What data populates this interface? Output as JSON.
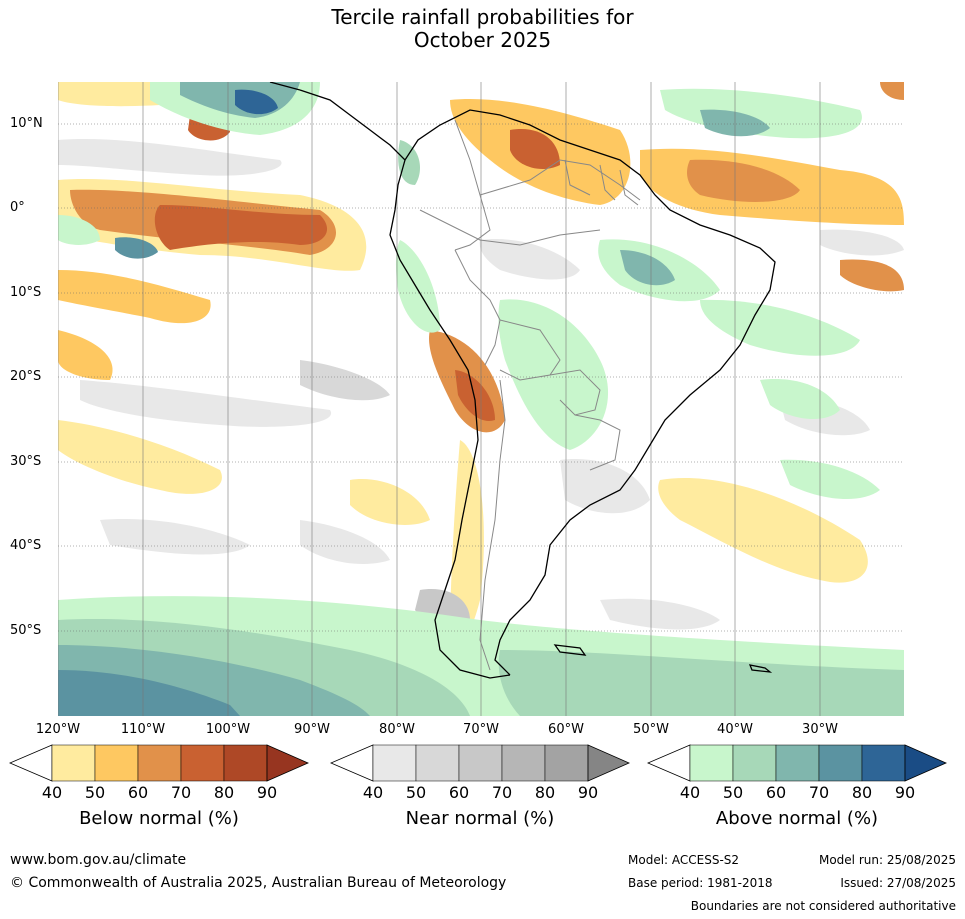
{
  "title_line1": "Tercile rainfall probabilities for",
  "title_line2": "October 2025",
  "map": {
    "lat_labels": [
      "10°N",
      "0°",
      "10°S",
      "20°S",
      "30°S",
      "40°S",
      "50°S"
    ],
    "lon_labels": [
      "120°W",
      "110°W",
      "100°W",
      "90°W",
      "80°W",
      "70°W",
      "60°W",
      "50°W",
      "40°W",
      "30°W"
    ],
    "ocean_color": "#ffffff",
    "border_color": "#888888",
    "coast_color": "#000000"
  },
  "colorbars": [
    {
      "label": "Below normal (%)",
      "ticks": [
        "40",
        "50",
        "60",
        "70",
        "80",
        "90"
      ],
      "colors": [
        "#ffeb9f",
        "#fec861",
        "#e1914a",
        "#c96131",
        "#ae4826",
        "#973520"
      ]
    },
    {
      "label": "Near normal (%)",
      "ticks": [
        "40",
        "50",
        "60",
        "70",
        "80",
        "90"
      ],
      "colors": [
        "#e8e8e8",
        "#d8d8d8",
        "#c8c8c8",
        "#b6b6b6",
        "#a3a3a3",
        "#858585"
      ]
    },
    {
      "label": "Above normal (%)",
      "ticks": [
        "40",
        "50",
        "60",
        "70",
        "80",
        "90"
      ],
      "colors": [
        "#c8f6cc",
        "#a7d8b8",
        "#80b6ad",
        "#5b93a1",
        "#2e6596",
        "#1a4c85"
      ]
    }
  ],
  "footer": {
    "url": "www.bom.gov.au/climate",
    "copyright": "© Commonwealth of Australia 2025, Australian Bureau of Meteorology",
    "model": "Model: ACCESS-S2",
    "base_period": "Base period: 1981-2018",
    "model_run": "Model run: 25/08/2025",
    "issued": "Issued: 27/08/2025",
    "disclaimer": "Boundaries are not considered authoritative"
  }
}
